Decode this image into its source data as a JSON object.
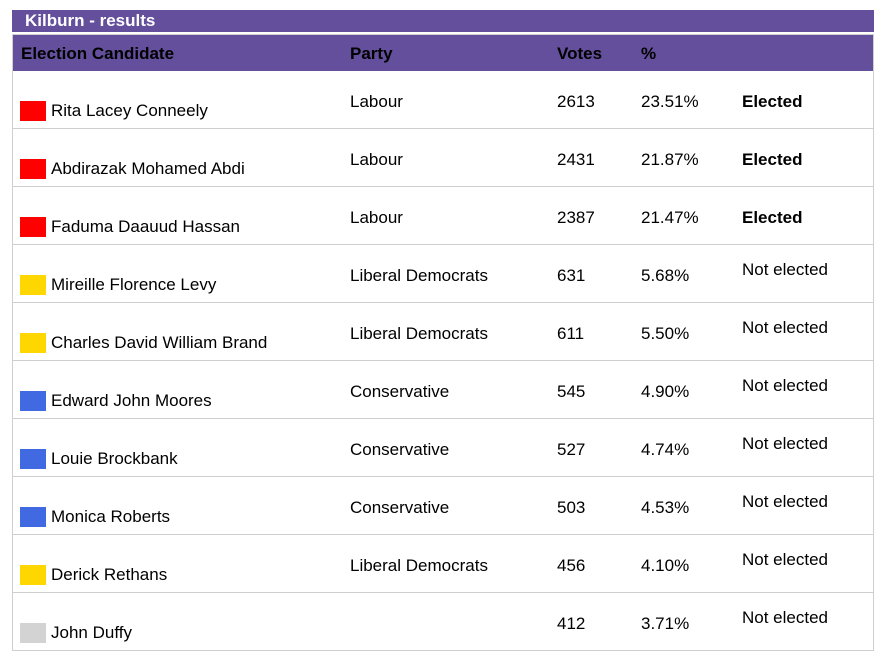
{
  "title": "Kilburn - results",
  "headers": {
    "candidate": "Election Candidate",
    "party": "Party",
    "votes": "Votes",
    "percent": "%"
  },
  "colors": {
    "header_bg": "#634f9c",
    "labour": "#ff0000",
    "liberal_democrats": "#ffd700",
    "conservative": "#4169e1",
    "independent": "#d3d3d3"
  },
  "rows": [
    {
      "name": "Rita Lacey Conneely",
      "party": "Labour",
      "votes": "2613",
      "percent": "23.51%",
      "status": "Elected",
      "color": "#ff0000",
      "elected": true
    },
    {
      "name": "Abdirazak Mohamed Abdi",
      "party": "Labour",
      "votes": "2431",
      "percent": "21.87%",
      "status": "Elected",
      "color": "#ff0000",
      "elected": true
    },
    {
      "name": "Faduma Daauud Hassan",
      "party": "Labour",
      "votes": "2387",
      "percent": "21.47%",
      "status": "Elected",
      "color": "#ff0000",
      "elected": true
    },
    {
      "name": "Mireille Florence Levy",
      "party": "Liberal Democrats",
      "votes": "631",
      "percent": "5.68%",
      "status": "Not elected",
      "color": "#ffd700",
      "elected": false
    },
    {
      "name": "Charles David William Brand",
      "party": "Liberal Democrats",
      "votes": "611",
      "percent": "5.50%",
      "status": "Not elected",
      "color": "#ffd700",
      "elected": false
    },
    {
      "name": "Edward John Moores",
      "party": "Conservative",
      "votes": "545",
      "percent": "4.90%",
      "status": "Not elected",
      "color": "#4169e1",
      "elected": false
    },
    {
      "name": "Louie Brockbank",
      "party": "Conservative",
      "votes": "527",
      "percent": "4.74%",
      "status": "Not elected",
      "color": "#4169e1",
      "elected": false
    },
    {
      "name": "Monica Roberts",
      "party": "Conservative",
      "votes": "503",
      "percent": "4.53%",
      "status": "Not elected",
      "color": "#4169e1",
      "elected": false
    },
    {
      "name": "Derick Rethans",
      "party": "Liberal Democrats",
      "votes": "456",
      "percent": "4.10%",
      "status": "Not elected",
      "color": "#ffd700",
      "elected": false
    },
    {
      "name": "John Duffy",
      "party": "",
      "votes": "412",
      "percent": "3.71%",
      "status": "Not elected",
      "color": "#d3d3d3",
      "elected": false
    }
  ]
}
